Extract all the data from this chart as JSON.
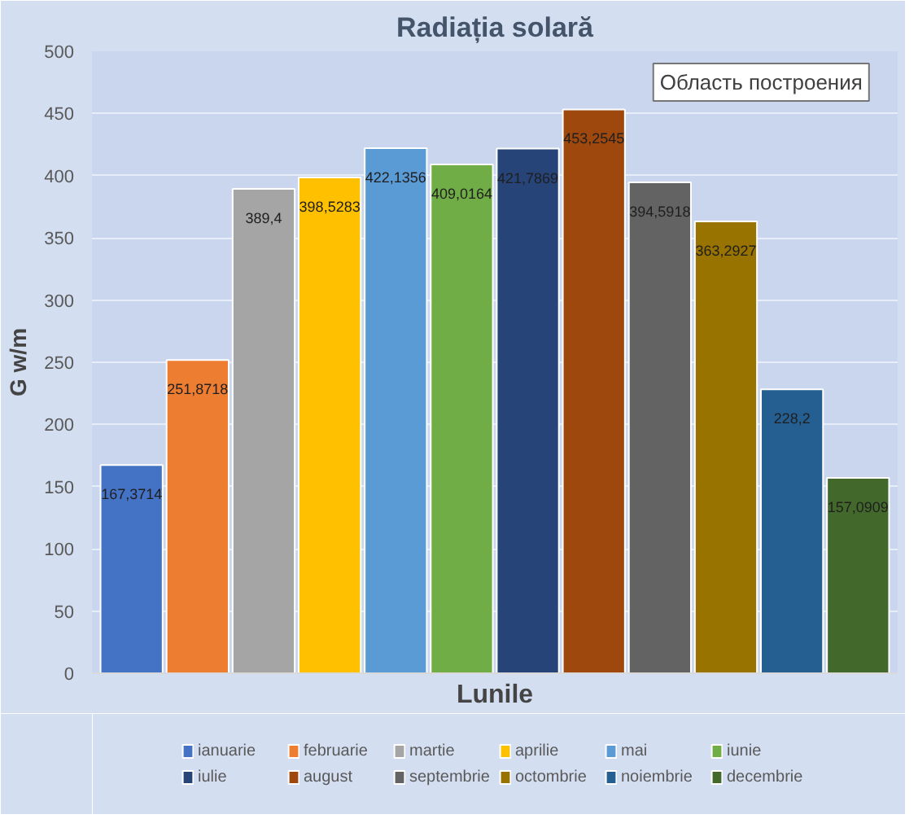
{
  "chart_data": {
    "type": "bar",
    "title": "Radiația solară",
    "xlabel": "Lunile",
    "ylabel": "G w/m",
    "categories": [
      null,
      null,
      null,
      null,
      null,
      null,
      null,
      null,
      null,
      null,
      null,
      null
    ],
    "series": [
      {
        "name": "ianuarie",
        "color": "#4472c4",
        "values": [
          167.3714,
          null,
          null,
          null,
          null,
          null,
          null,
          null,
          null,
          null,
          null,
          null
        ],
        "value_labels": [
          "167,3714",
          null,
          null,
          null,
          null,
          null,
          null,
          null,
          null,
          null,
          null,
          null
        ]
      },
      {
        "name": "februarie",
        "color": "#ed7d31",
        "values": [
          null,
          251.8718,
          null,
          null,
          null,
          null,
          null,
          null,
          null,
          null,
          null,
          null
        ],
        "value_labels": [
          null,
          "251,8718",
          null,
          null,
          null,
          null,
          null,
          null,
          null,
          null,
          null,
          null
        ]
      },
      {
        "name": "martie",
        "color": "#a5a5a5",
        "values": [
          null,
          null,
          389.4,
          null,
          null,
          null,
          null,
          null,
          null,
          null,
          null,
          null
        ],
        "value_labels": [
          null,
          null,
          "389,4",
          null,
          null,
          null,
          null,
          null,
          null,
          null,
          null,
          null
        ]
      },
      {
        "name": "aprilie",
        "color": "#ffc000",
        "values": [
          null,
          null,
          null,
          398.5283,
          null,
          null,
          null,
          null,
          null,
          null,
          null,
          null
        ],
        "value_labels": [
          null,
          null,
          null,
          "398,5283",
          null,
          null,
          null,
          null,
          null,
          null,
          null,
          null
        ]
      },
      {
        "name": "mai",
        "color": "#5b9bd5",
        "values": [
          null,
          null,
          null,
          null,
          422.1356,
          null,
          null,
          null,
          null,
          null,
          null,
          null
        ],
        "value_labels": [
          null,
          null,
          null,
          null,
          "422,1356",
          null,
          null,
          null,
          null,
          null,
          null,
          null
        ]
      },
      {
        "name": "iunie",
        "color": "#70ad47",
        "values": [
          null,
          null,
          null,
          null,
          null,
          409.0164,
          null,
          null,
          null,
          null,
          null,
          null
        ],
        "value_labels": [
          null,
          null,
          null,
          null,
          null,
          "409,0164",
          null,
          null,
          null,
          null,
          null,
          null
        ]
      },
      {
        "name": "iulie",
        "color": "#264478",
        "values": [
          null,
          null,
          null,
          null,
          null,
          null,
          421.7869,
          null,
          null,
          null,
          null,
          null
        ],
        "value_labels": [
          null,
          null,
          null,
          null,
          null,
          null,
          "421,7869",
          null,
          null,
          null,
          null,
          null
        ]
      },
      {
        "name": "august",
        "color": "#9e480e",
        "values": [
          null,
          null,
          null,
          null,
          null,
          null,
          null,
          453.2545,
          null,
          null,
          null,
          null
        ],
        "value_labels": [
          null,
          null,
          null,
          null,
          null,
          null,
          null,
          "453,2545",
          null,
          null,
          null,
          null
        ]
      },
      {
        "name": "septembrie",
        "color": "#636363",
        "values": [
          null,
          null,
          null,
          null,
          null,
          null,
          null,
          null,
          394.5918,
          null,
          null,
          null
        ],
        "value_labels": [
          null,
          null,
          null,
          null,
          null,
          null,
          null,
          null,
          "394,5918",
          null,
          null,
          null
        ]
      },
      {
        "name": "octombrie",
        "color": "#997300",
        "values": [
          null,
          null,
          null,
          null,
          null,
          null,
          null,
          null,
          null,
          363.2927,
          null,
          null
        ],
        "value_labels": [
          null,
          null,
          null,
          null,
          null,
          null,
          null,
          null,
          null,
          "363,2927",
          null,
          null
        ]
      },
      {
        "name": "noiembrie",
        "color": "#255e91",
        "values": [
          null,
          null,
          null,
          null,
          null,
          null,
          null,
          null,
          null,
          null,
          228.2,
          null
        ],
        "value_labels": [
          null,
          null,
          null,
          null,
          null,
          null,
          null,
          null,
          null,
          null,
          "228,2",
          null
        ]
      },
      {
        "name": "decembrie",
        "color": "#43682b",
        "values": [
          null,
          null,
          null,
          null,
          null,
          null,
          null,
          null,
          null,
          null,
          null,
          157.0909
        ],
        "value_labels": [
          null,
          null,
          null,
          null,
          null,
          null,
          null,
          null,
          null,
          null,
          null,
          "157,0909"
        ]
      }
    ],
    "ylim": [
      0,
      500
    ],
    "yticks": [
      0,
      50,
      100,
      150,
      200,
      250,
      300,
      350,
      400,
      450,
      500
    ],
    "grid": "y",
    "legend": "bottom",
    "tick_labels": "y",
    "annotations": [
      "Область построения"
    ]
  }
}
